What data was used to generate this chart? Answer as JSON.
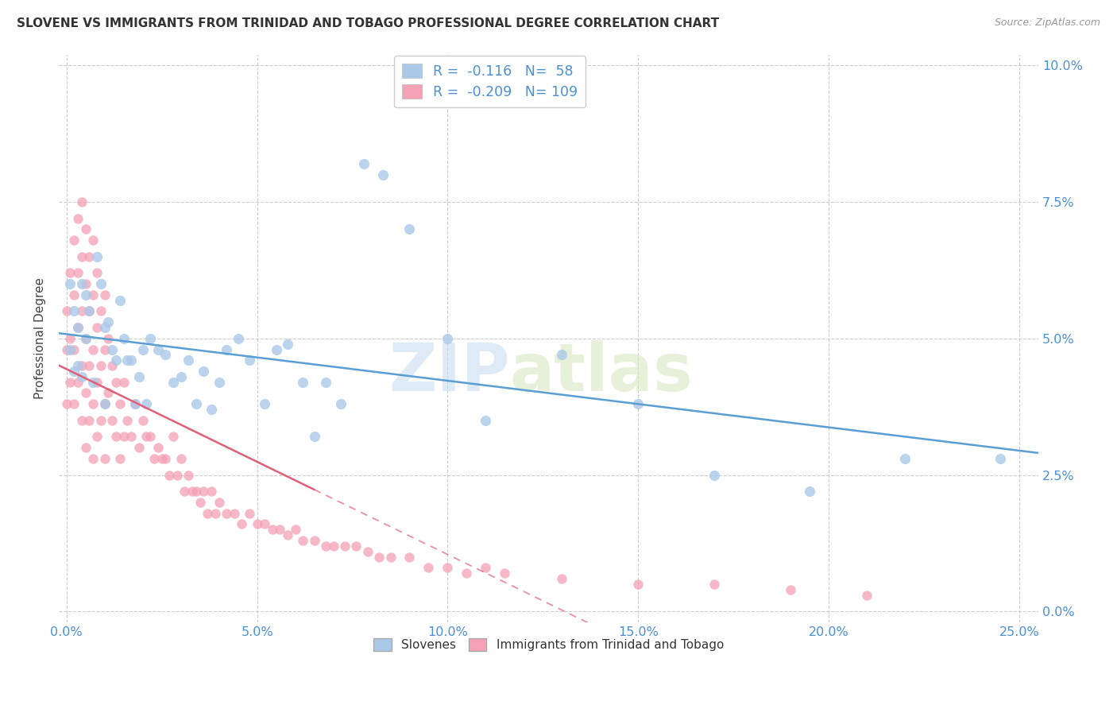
{
  "title": "SLOVENE VS IMMIGRANTS FROM TRINIDAD AND TOBAGO PROFESSIONAL DEGREE CORRELATION CHART",
  "source": "Source: ZipAtlas.com",
  "xlabel_vals": [
    0.0,
    0.05,
    0.1,
    0.15,
    0.2,
    0.25
  ],
  "ylabel_vals": [
    0.0,
    0.025,
    0.05,
    0.075,
    0.1
  ],
  "ylabel_label": "Professional Degree",
  "xlim": [
    -0.002,
    0.255
  ],
  "ylim": [
    -0.002,
    0.102
  ],
  "slovene_R": -0.116,
  "slovene_N": 58,
  "immigrant_R": -0.209,
  "immigrant_N": 109,
  "slovene_color": "#aac8e8",
  "slovene_line_color": "#5a9fd4",
  "immigrant_color": "#f4a0b5",
  "immigrant_line_color": "#e0607a",
  "watermark_zip": "ZIP",
  "watermark_atlas": "atlas",
  "legend_label_slovene": "Slovenes",
  "legend_label_immigrant": "Immigrants from Trinidad and Tobago",
  "slovene_x": [
    0.001,
    0.001,
    0.002,
    0.002,
    0.003,
    0.003,
    0.004,
    0.004,
    0.005,
    0.005,
    0.006,
    0.007,
    0.008,
    0.009,
    0.01,
    0.01,
    0.011,
    0.012,
    0.013,
    0.014,
    0.015,
    0.016,
    0.017,
    0.018,
    0.019,
    0.02,
    0.021,
    0.022,
    0.024,
    0.026,
    0.028,
    0.03,
    0.032,
    0.034,
    0.036,
    0.038,
    0.04,
    0.042,
    0.045,
    0.048,
    0.052,
    0.055,
    0.058,
    0.062,
    0.065,
    0.068,
    0.072,
    0.078,
    0.083,
    0.09,
    0.1,
    0.11,
    0.13,
    0.15,
    0.17,
    0.195,
    0.22,
    0.245
  ],
  "slovene_y": [
    0.048,
    0.06,
    0.055,
    0.044,
    0.052,
    0.045,
    0.043,
    0.06,
    0.058,
    0.05,
    0.055,
    0.042,
    0.065,
    0.06,
    0.038,
    0.052,
    0.053,
    0.048,
    0.046,
    0.057,
    0.05,
    0.046,
    0.046,
    0.038,
    0.043,
    0.048,
    0.038,
    0.05,
    0.048,
    0.047,
    0.042,
    0.043,
    0.046,
    0.038,
    0.044,
    0.037,
    0.042,
    0.048,
    0.05,
    0.046,
    0.038,
    0.048,
    0.049,
    0.042,
    0.032,
    0.042,
    0.038,
    0.082,
    0.08,
    0.07,
    0.05,
    0.035,
    0.047,
    0.038,
    0.025,
    0.022,
    0.028,
    0.028
  ],
  "immigrant_x": [
    0.0,
    0.0,
    0.0,
    0.001,
    0.001,
    0.001,
    0.002,
    0.002,
    0.002,
    0.002,
    0.003,
    0.003,
    0.003,
    0.003,
    0.004,
    0.004,
    0.004,
    0.004,
    0.004,
    0.005,
    0.005,
    0.005,
    0.005,
    0.005,
    0.006,
    0.006,
    0.006,
    0.006,
    0.007,
    0.007,
    0.007,
    0.007,
    0.007,
    0.008,
    0.008,
    0.008,
    0.008,
    0.009,
    0.009,
    0.009,
    0.01,
    0.01,
    0.01,
    0.01,
    0.011,
    0.011,
    0.012,
    0.012,
    0.013,
    0.013,
    0.014,
    0.014,
    0.015,
    0.015,
    0.016,
    0.017,
    0.018,
    0.019,
    0.02,
    0.021,
    0.022,
    0.023,
    0.024,
    0.025,
    0.026,
    0.027,
    0.028,
    0.029,
    0.03,
    0.031,
    0.032,
    0.033,
    0.034,
    0.035,
    0.036,
    0.037,
    0.038,
    0.039,
    0.04,
    0.042,
    0.044,
    0.046,
    0.048,
    0.05,
    0.052,
    0.054,
    0.056,
    0.058,
    0.06,
    0.062,
    0.065,
    0.068,
    0.07,
    0.073,
    0.076,
    0.079,
    0.082,
    0.085,
    0.09,
    0.095,
    0.1,
    0.105,
    0.11,
    0.115,
    0.13,
    0.15,
    0.17,
    0.19,
    0.21
  ],
  "immigrant_y": [
    0.055,
    0.048,
    0.038,
    0.062,
    0.05,
    0.042,
    0.068,
    0.058,
    0.048,
    0.038,
    0.072,
    0.062,
    0.052,
    0.042,
    0.075,
    0.065,
    0.055,
    0.045,
    0.035,
    0.07,
    0.06,
    0.05,
    0.04,
    0.03,
    0.065,
    0.055,
    0.045,
    0.035,
    0.068,
    0.058,
    0.048,
    0.038,
    0.028,
    0.062,
    0.052,
    0.042,
    0.032,
    0.055,
    0.045,
    0.035,
    0.058,
    0.048,
    0.038,
    0.028,
    0.05,
    0.04,
    0.045,
    0.035,
    0.042,
    0.032,
    0.038,
    0.028,
    0.042,
    0.032,
    0.035,
    0.032,
    0.038,
    0.03,
    0.035,
    0.032,
    0.032,
    0.028,
    0.03,
    0.028,
    0.028,
    0.025,
    0.032,
    0.025,
    0.028,
    0.022,
    0.025,
    0.022,
    0.022,
    0.02,
    0.022,
    0.018,
    0.022,
    0.018,
    0.02,
    0.018,
    0.018,
    0.016,
    0.018,
    0.016,
    0.016,
    0.015,
    0.015,
    0.014,
    0.015,
    0.013,
    0.013,
    0.012,
    0.012,
    0.012,
    0.012,
    0.011,
    0.01,
    0.01,
    0.01,
    0.008,
    0.008,
    0.007,
    0.008,
    0.007,
    0.006,
    0.005,
    0.005,
    0.004,
    0.003
  ]
}
